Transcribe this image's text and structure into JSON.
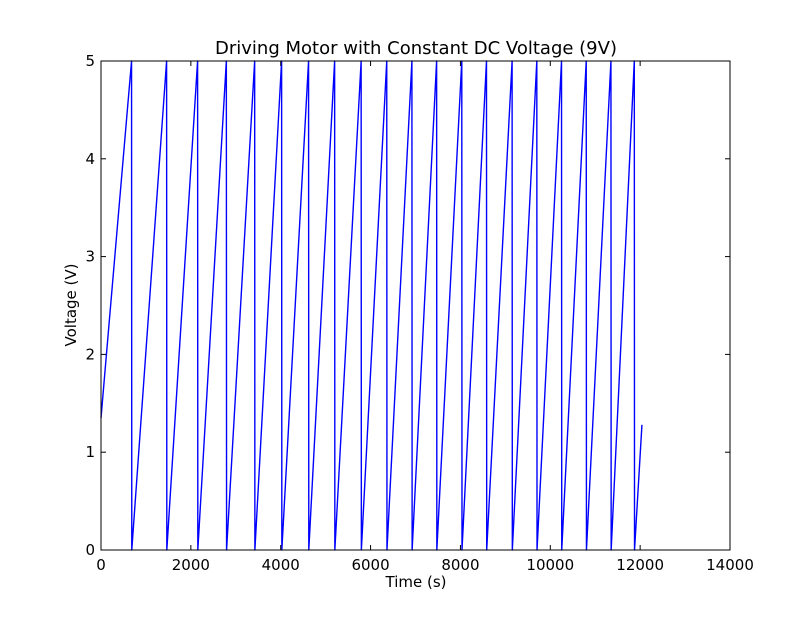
{
  "chart_data": {
    "type": "line",
    "title": "Driving Motor with Constant DC Voltage (9V)",
    "xlabel": "Time (s)",
    "ylabel": "Voltage (V)",
    "xlim": [
      0,
      14000
    ],
    "ylim": [
      0,
      5
    ],
    "xticks": [
      0,
      2000,
      4000,
      6000,
      8000,
      10000,
      12000,
      14000
    ],
    "xtick_labels": [
      "0",
      "2000",
      "4000",
      "6000",
      "8000",
      "10000",
      "12000",
      "14000"
    ],
    "yticks": [
      0,
      1,
      2,
      3,
      4,
      5
    ],
    "ytick_labels": [
      "0",
      "1",
      "2",
      "3",
      "4",
      "5"
    ],
    "grid": false,
    "legend": false,
    "series": [
      {
        "color": "#0000ff",
        "x": [
          0,
          680,
          685,
          1460,
          1465,
          2150,
          2155,
          2790,
          2795,
          3420,
          3425,
          4020,
          4025,
          4620,
          4625,
          5200,
          5205,
          5790,
          5795,
          6360,
          6365,
          6920,
          6925,
          7470,
          7475,
          8030,
          8035,
          8580,
          8585,
          9150,
          9155,
          9700,
          9705,
          10250,
          10255,
          10800,
          10805,
          11350,
          11355,
          11870,
          11875,
          12040
        ],
        "y": [
          1.35,
          5.0,
          0.0,
          5.0,
          0.0,
          5.0,
          0.0,
          5.0,
          0.0,
          5.0,
          0.0,
          5.0,
          0.0,
          5.0,
          0.0,
          5.0,
          0.0,
          5.0,
          0.0,
          5.0,
          0.0,
          5.0,
          0.0,
          5.0,
          0.0,
          5.0,
          0.0,
          5.0,
          0.0,
          5.0,
          0.0,
          5.0,
          0.0,
          5.0,
          0.0,
          5.0,
          0.0,
          5.0,
          0.0,
          5.0,
          0.0,
          1.28
        ]
      }
    ]
  }
}
